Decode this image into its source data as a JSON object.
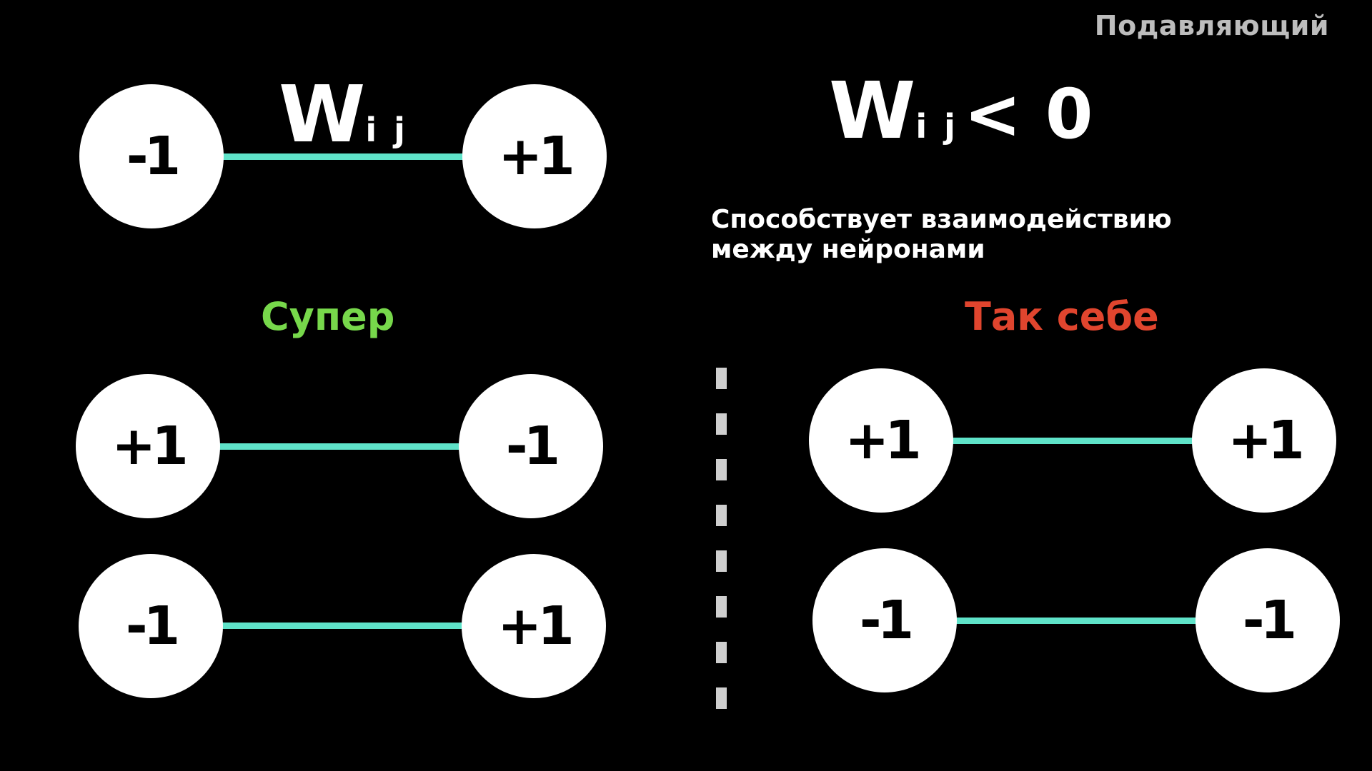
{
  "header": {
    "corner_label": "Подавляющий"
  },
  "left": {
    "top_pair": {
      "weight_symbol": "W",
      "weight_subscript": "i j",
      "node_a": "-1",
      "node_b": "+1"
    },
    "verdict": "Супер",
    "pairs": [
      {
        "node_a": "+1",
        "node_b": "-1"
      },
      {
        "node_a": "-1",
        "node_b": "+1"
      }
    ]
  },
  "right": {
    "condition": {
      "weight_symbol": "W",
      "weight_subscript": "i j",
      "relation": "< 0"
    },
    "description_line1": "Способствует взаимодействию",
    "description_line2": "между нейронами",
    "verdict": "Так себе",
    "pairs": [
      {
        "node_a": "+1",
        "node_b": "+1"
      },
      {
        "node_a": "-1",
        "node_b": "-1"
      }
    ]
  },
  "colors": {
    "background": "#000000",
    "edge": "#5fe3c9",
    "good": "#77d84b",
    "bad": "#e0452e",
    "divider": "#cfcfcf",
    "corner_label": "#bdbdbd"
  }
}
